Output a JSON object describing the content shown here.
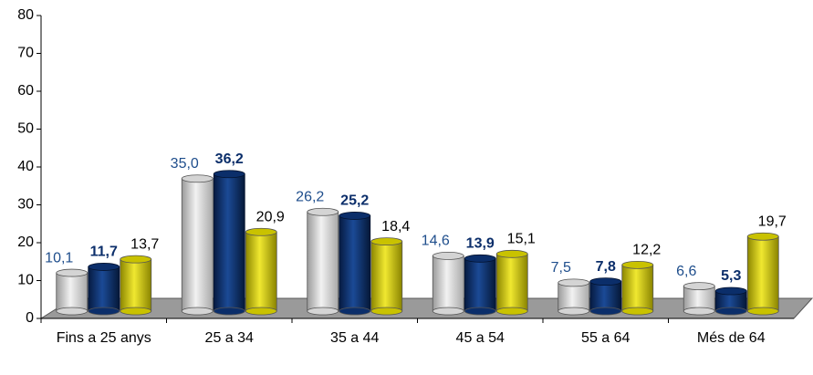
{
  "chart_data": {
    "type": "bar",
    "categories": [
      "Fins a 25 anys",
      "25 a 34",
      "35 a 44",
      "45 a 54",
      "55 a 64",
      "Més de 64"
    ],
    "series": [
      {
        "color": "#d4d4d4",
        "values": [
          10.1,
          35.0,
          26.2,
          14.6,
          7.5,
          6.6
        ],
        "value_labels": [
          "10,1",
          "35,0",
          "26,2",
          "14,6",
          "7,5",
          "6,6"
        ]
      },
      {
        "color": "#0b2e6a",
        "values": [
          11.7,
          36.2,
          25.2,
          13.9,
          7.8,
          5.3
        ],
        "value_labels": [
          "11,7",
          "36,2",
          "25,2",
          "13,9",
          "7,8",
          "5,3"
        ]
      },
      {
        "color": "#c9c200",
        "values": [
          13.7,
          20.9,
          18.4,
          15.1,
          12.2,
          19.7
        ],
        "value_labels": [
          "13,7",
          "20,9",
          "18,4",
          "15,1",
          "12,2",
          "19,7"
        ]
      }
    ],
    "ylim": [
      0,
      80
    ],
    "yticks": [
      0,
      10,
      20,
      30,
      40,
      50,
      60,
      70,
      80
    ]
  }
}
